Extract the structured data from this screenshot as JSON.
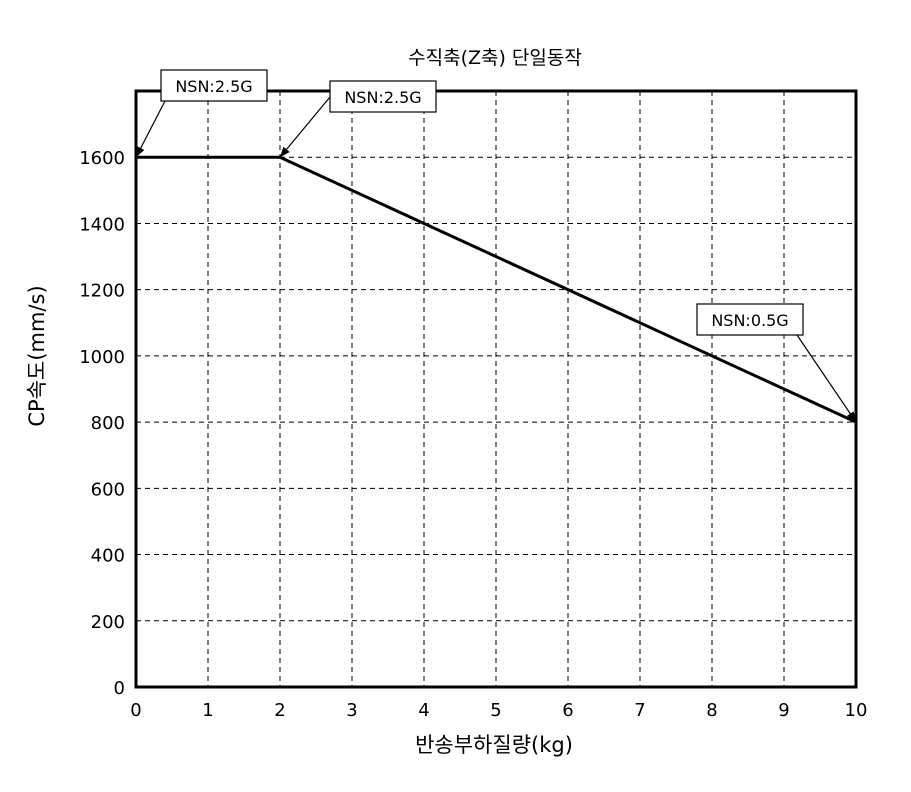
{
  "chart_data": {
    "type": "line",
    "title": "수직축(Z축) 단일동작",
    "xlabel": "반송부하질량(kg)",
    "ylabel": "CP속도(mm/s)",
    "xlim": [
      0,
      10
    ],
    "ylim": [
      0,
      1800
    ],
    "xticks": [
      0,
      1,
      2,
      3,
      4,
      5,
      6,
      7,
      8,
      9,
      10
    ],
    "yticks": [
      0,
      200,
      400,
      600,
      800,
      1000,
      1200,
      1400,
      1600
    ],
    "grid": true,
    "series": [
      {
        "x": [
          0,
          2,
          10
        ],
        "y": [
          1600,
          1600,
          800
        ]
      }
    ],
    "annotations": [
      {
        "text": "NSN:2.5G",
        "x": 0,
        "y": 1600
      },
      {
        "text": "NSN:2.5G",
        "x": 2,
        "y": 1600
      },
      {
        "text": "NSN:0.5G",
        "x": 10,
        "y": 800
      }
    ]
  }
}
